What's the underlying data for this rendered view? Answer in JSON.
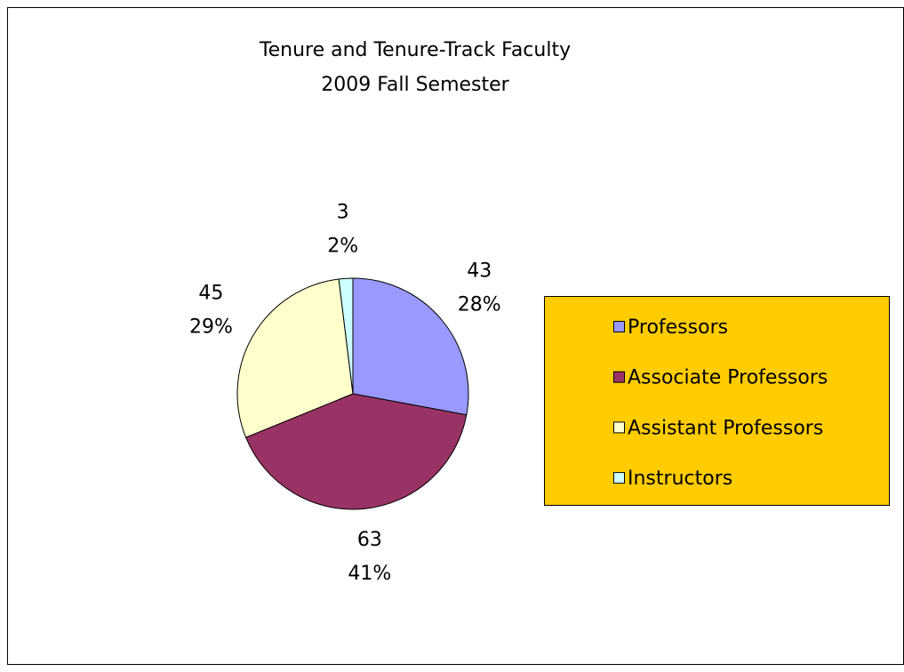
{
  "chart_data": {
    "type": "pie",
    "title": "Tenure and Tenure-Track Faculty",
    "subtitle": "2009 Fall Semester",
    "categories": [
      "Professors",
      "Associate Professors",
      "Assistant Professors",
      "Instructors"
    ],
    "values": [
      43,
      63,
      45,
      3
    ],
    "percent_labels": [
      "28%",
      "41%",
      "29%",
      "2%"
    ],
    "colors": [
      "#9999ff",
      "#993366",
      "#ffffcc",
      "#ccffff"
    ],
    "legend": "right"
  }
}
